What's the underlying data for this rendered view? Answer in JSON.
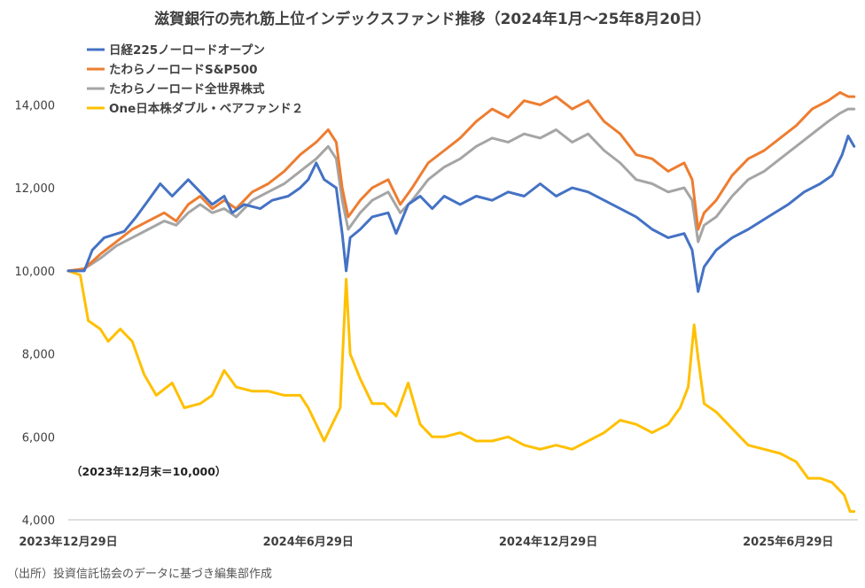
{
  "chart_data": {
    "type": "line",
    "title": "滋賀銀行の売れ筋上位インデックスファンド推移（2024年1月～25年8月20日）",
    "annotation": "（2023年12月末＝10,000）",
    "source": "（出所）投資信託協会のデータに基づき編集部作成",
    "ylim": [
      4000,
      14500
    ],
    "yticks": [
      {
        "v": 4000,
        "label": "4,000"
      },
      {
        "v": 6000,
        "label": "6,000"
      },
      {
        "v": 8000,
        "label": "8,000"
      },
      {
        "v": 10000,
        "label": "10,000"
      },
      {
        "v": 12000,
        "label": "12,000"
      },
      {
        "v": 14000,
        "label": "14,000"
      }
    ],
    "xlim": [
      0,
      19.7
    ],
    "xticks": [
      {
        "m": 0,
        "label": "2023年12月29日"
      },
      {
        "m": 6,
        "label": "2024年6月29日"
      },
      {
        "m": 12,
        "label": "2024年12月29日"
      },
      {
        "m": 18,
        "label": "2025年6月29日"
      }
    ],
    "x_unit": "months since 2023-12-29",
    "grid": false,
    "legend_position": "top-left",
    "series": [
      {
        "name": "日経225ノーロードオープン",
        "color": "#4472C4",
        "points": [
          [
            0,
            10000
          ],
          [
            0.4,
            10000
          ],
          [
            0.6,
            10500
          ],
          [
            0.9,
            10800
          ],
          [
            1.4,
            10950
          ],
          [
            1.7,
            11300
          ],
          [
            2.0,
            11700
          ],
          [
            2.3,
            12100
          ],
          [
            2.6,
            11800
          ],
          [
            3.0,
            12200
          ],
          [
            3.3,
            11900
          ],
          [
            3.6,
            11600
          ],
          [
            3.9,
            11800
          ],
          [
            4.1,
            11400
          ],
          [
            4.4,
            11600
          ],
          [
            4.8,
            11500
          ],
          [
            5.1,
            11700
          ],
          [
            5.5,
            11800
          ],
          [
            5.8,
            12000
          ],
          [
            6.0,
            12200
          ],
          [
            6.2,
            12600
          ],
          [
            6.4,
            12200
          ],
          [
            6.7,
            12000
          ],
          [
            6.85,
            10900
          ],
          [
            6.95,
            10000
          ],
          [
            7.05,
            10800
          ],
          [
            7.3,
            11000
          ],
          [
            7.6,
            11300
          ],
          [
            8.0,
            11400
          ],
          [
            8.2,
            10900
          ],
          [
            8.5,
            11600
          ],
          [
            8.8,
            11800
          ],
          [
            9.1,
            11500
          ],
          [
            9.4,
            11800
          ],
          [
            9.8,
            11600
          ],
          [
            10.2,
            11800
          ],
          [
            10.6,
            11700
          ],
          [
            11.0,
            11900
          ],
          [
            11.4,
            11800
          ],
          [
            11.8,
            12100
          ],
          [
            12.2,
            11800
          ],
          [
            12.6,
            12000
          ],
          [
            13.0,
            11900
          ],
          [
            13.4,
            11700
          ],
          [
            13.8,
            11500
          ],
          [
            14.2,
            11300
          ],
          [
            14.6,
            11000
          ],
          [
            15.0,
            10800
          ],
          [
            15.4,
            10900
          ],
          [
            15.6,
            10500
          ],
          [
            15.75,
            9500
          ],
          [
            15.9,
            10100
          ],
          [
            16.2,
            10500
          ],
          [
            16.6,
            10800
          ],
          [
            17.0,
            11000
          ],
          [
            17.5,
            11300
          ],
          [
            18.0,
            11600
          ],
          [
            18.4,
            11900
          ],
          [
            18.8,
            12100
          ],
          [
            19.1,
            12300
          ],
          [
            19.35,
            12800
          ],
          [
            19.5,
            13250
          ],
          [
            19.65,
            13000
          ]
        ]
      },
      {
        "name": "たわらノーロードS&P500",
        "color": "#ED7D31",
        "points": [
          [
            0,
            10000
          ],
          [
            0.4,
            10050
          ],
          [
            0.8,
            10400
          ],
          [
            1.2,
            10700
          ],
          [
            1.6,
            11000
          ],
          [
            2.0,
            11200
          ],
          [
            2.4,
            11400
          ],
          [
            2.7,
            11200
          ],
          [
            3.0,
            11600
          ],
          [
            3.3,
            11800
          ],
          [
            3.6,
            11500
          ],
          [
            3.9,
            11700
          ],
          [
            4.2,
            11500
          ],
          [
            4.6,
            11900
          ],
          [
            5.0,
            12100
          ],
          [
            5.4,
            12400
          ],
          [
            5.8,
            12800
          ],
          [
            6.2,
            13100
          ],
          [
            6.5,
            13400
          ],
          [
            6.7,
            13100
          ],
          [
            6.85,
            12000
          ],
          [
            7.0,
            11300
          ],
          [
            7.3,
            11700
          ],
          [
            7.6,
            12000
          ],
          [
            8.0,
            12200
          ],
          [
            8.3,
            11600
          ],
          [
            8.6,
            12000
          ],
          [
            9.0,
            12600
          ],
          [
            9.4,
            12900
          ],
          [
            9.8,
            13200
          ],
          [
            10.2,
            13600
          ],
          [
            10.6,
            13900
          ],
          [
            11.0,
            13700
          ],
          [
            11.4,
            14100
          ],
          [
            11.8,
            14000
          ],
          [
            12.2,
            14200
          ],
          [
            12.6,
            13900
          ],
          [
            13.0,
            14100
          ],
          [
            13.4,
            13600
          ],
          [
            13.8,
            13300
          ],
          [
            14.2,
            12800
          ],
          [
            14.6,
            12700
          ],
          [
            15.0,
            12400
          ],
          [
            15.4,
            12600
          ],
          [
            15.6,
            12200
          ],
          [
            15.75,
            11000
          ],
          [
            15.9,
            11400
          ],
          [
            16.2,
            11700
          ],
          [
            16.6,
            12300
          ],
          [
            17.0,
            12700
          ],
          [
            17.4,
            12900
          ],
          [
            17.8,
            13200
          ],
          [
            18.2,
            13500
          ],
          [
            18.6,
            13900
          ],
          [
            19.0,
            14100
          ],
          [
            19.3,
            14300
          ],
          [
            19.5,
            14200
          ],
          [
            19.65,
            14200
          ]
        ]
      },
      {
        "name": "たわらノーロード全世界株式",
        "color": "#A5A5A5",
        "points": [
          [
            0,
            10000
          ],
          [
            0.4,
            10050
          ],
          [
            0.8,
            10300
          ],
          [
            1.2,
            10600
          ],
          [
            1.6,
            10800
          ],
          [
            2.0,
            11000
          ],
          [
            2.4,
            11200
          ],
          [
            2.7,
            11100
          ],
          [
            3.0,
            11400
          ],
          [
            3.3,
            11600
          ],
          [
            3.6,
            11400
          ],
          [
            3.9,
            11500
          ],
          [
            4.2,
            11300
          ],
          [
            4.6,
            11700
          ],
          [
            5.0,
            11900
          ],
          [
            5.4,
            12100
          ],
          [
            5.8,
            12400
          ],
          [
            6.2,
            12700
          ],
          [
            6.5,
            13000
          ],
          [
            6.7,
            12700
          ],
          [
            6.85,
            11700
          ],
          [
            7.0,
            11000
          ],
          [
            7.3,
            11400
          ],
          [
            7.6,
            11700
          ],
          [
            8.0,
            11900
          ],
          [
            8.3,
            11400
          ],
          [
            8.6,
            11700
          ],
          [
            9.0,
            12200
          ],
          [
            9.4,
            12500
          ],
          [
            9.8,
            12700
          ],
          [
            10.2,
            13000
          ],
          [
            10.6,
            13200
          ],
          [
            11.0,
            13100
          ],
          [
            11.4,
            13300
          ],
          [
            11.8,
            13200
          ],
          [
            12.2,
            13400
          ],
          [
            12.6,
            13100
          ],
          [
            13.0,
            13300
          ],
          [
            13.4,
            12900
          ],
          [
            13.8,
            12600
          ],
          [
            14.2,
            12200
          ],
          [
            14.6,
            12100
          ],
          [
            15.0,
            11900
          ],
          [
            15.4,
            12000
          ],
          [
            15.6,
            11700
          ],
          [
            15.75,
            10700
          ],
          [
            15.9,
            11100
          ],
          [
            16.2,
            11300
          ],
          [
            16.6,
            11800
          ],
          [
            17.0,
            12200
          ],
          [
            17.4,
            12400
          ],
          [
            17.8,
            12700
          ],
          [
            18.2,
            13000
          ],
          [
            18.6,
            13300
          ],
          [
            19.0,
            13600
          ],
          [
            19.3,
            13800
          ],
          [
            19.5,
            13900
          ],
          [
            19.65,
            13900
          ]
        ]
      },
      {
        "name": "One日本株ダブル・ベアファンド２",
        "color": "#FFC000",
        "points": [
          [
            0,
            10000
          ],
          [
            0.3,
            9900
          ],
          [
            0.5,
            8800
          ],
          [
            0.8,
            8600
          ],
          [
            1.0,
            8300
          ],
          [
            1.3,
            8600
          ],
          [
            1.6,
            8300
          ],
          [
            1.9,
            7500
          ],
          [
            2.2,
            7000
          ],
          [
            2.6,
            7300
          ],
          [
            2.9,
            6700
          ],
          [
            3.3,
            6800
          ],
          [
            3.6,
            7000
          ],
          [
            3.9,
            7600
          ],
          [
            4.2,
            7200
          ],
          [
            4.6,
            7100
          ],
          [
            5.0,
            7100
          ],
          [
            5.4,
            7000
          ],
          [
            5.8,
            7000
          ],
          [
            6.0,
            6700
          ],
          [
            6.2,
            6300
          ],
          [
            6.4,
            5900
          ],
          [
            6.6,
            6300
          ],
          [
            6.8,
            6700
          ],
          [
            6.9,
            8800
          ],
          [
            6.95,
            9800
          ],
          [
            7.05,
            8000
          ],
          [
            7.3,
            7400
          ],
          [
            7.6,
            6800
          ],
          [
            7.9,
            6800
          ],
          [
            8.2,
            6500
          ],
          [
            8.5,
            7300
          ],
          [
            8.8,
            6300
          ],
          [
            9.1,
            6000
          ],
          [
            9.4,
            6000
          ],
          [
            9.8,
            6100
          ],
          [
            10.2,
            5900
          ],
          [
            10.6,
            5900
          ],
          [
            11.0,
            6000
          ],
          [
            11.4,
            5800
          ],
          [
            11.8,
            5700
          ],
          [
            12.2,
            5800
          ],
          [
            12.6,
            5700
          ],
          [
            13.0,
            5900
          ],
          [
            13.4,
            6100
          ],
          [
            13.8,
            6400
          ],
          [
            14.2,
            6300
          ],
          [
            14.6,
            6100
          ],
          [
            15.0,
            6300
          ],
          [
            15.3,
            6700
          ],
          [
            15.5,
            7200
          ],
          [
            15.65,
            8700
          ],
          [
            15.75,
            7900
          ],
          [
            15.9,
            6800
          ],
          [
            16.2,
            6600
          ],
          [
            16.6,
            6200
          ],
          [
            17.0,
            5800
          ],
          [
            17.4,
            5700
          ],
          [
            17.8,
            5600
          ],
          [
            18.2,
            5400
          ],
          [
            18.5,
            5000
          ],
          [
            18.8,
            5000
          ],
          [
            19.1,
            4900
          ],
          [
            19.4,
            4600
          ],
          [
            19.55,
            4200
          ],
          [
            19.65,
            4200
          ]
        ]
      }
    ]
  }
}
